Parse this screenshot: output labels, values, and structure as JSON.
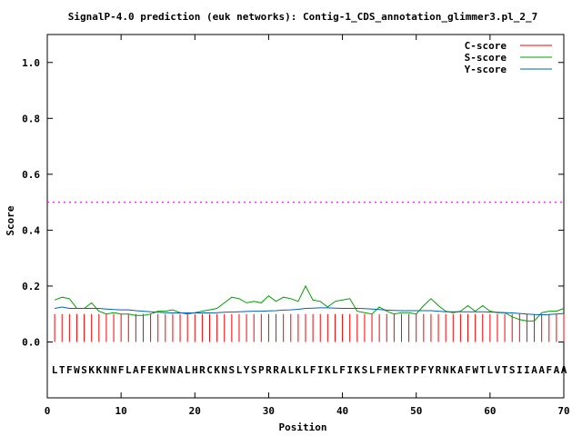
{
  "chart_data": {
    "type": "line",
    "title": "SignalP-4.0 prediction (euk networks): Contig-1_CDS_annotation_glimmer3.pl_2_7",
    "xlabel": "Position",
    "ylabel": "Score",
    "xlim": [
      0,
      70
    ],
    "ylim": [
      -0.2,
      1.1
    ],
    "xticks": [
      0,
      10,
      20,
      30,
      40,
      50,
      60,
      70
    ],
    "yticks": [
      0.0,
      0.2,
      0.4,
      0.6,
      0.8,
      1.0
    ],
    "xtick_labels": [
      "0",
      "10",
      "20",
      "30",
      "40",
      "50",
      "60",
      "70"
    ],
    "ytick_labels": [
      "0.0",
      "0.2",
      "0.4",
      "0.6",
      "0.8",
      "1.0"
    ],
    "threshold": 0.5,
    "threshold_color": "#ff00ff",
    "sequence": "LTFWSKKNNFLAFEKWNALHRCKNSLYSPRRALKLFIKLFIKSLFMEKTPFYRNKAFWTLVTSIIAAFAA",
    "legend_position": "top-right",
    "positions": [
      1,
      2,
      3,
      4,
      5,
      6,
      7,
      8,
      9,
      10,
      11,
      12,
      13,
      14,
      15,
      16,
      17,
      18,
      19,
      20,
      21,
      22,
      23,
      24,
      25,
      26,
      27,
      28,
      29,
      30,
      31,
      32,
      33,
      34,
      35,
      36,
      37,
      38,
      39,
      40,
      41,
      42,
      43,
      44,
      45,
      46,
      47,
      48,
      49,
      50,
      51,
      52,
      53,
      54,
      55,
      56,
      57,
      58,
      59,
      60,
      61,
      62,
      63,
      64,
      65,
      66,
      67,
      68,
      69,
      70
    ],
    "series": [
      {
        "name": "C-score",
        "color": "#ff0000",
        "style": "impulses",
        "values": [
          0.1,
          0.1,
          0.1,
          0.1,
          0.1,
          0.1,
          0.1,
          0.1,
          0.1,
          0.1,
          0.1,
          0.1,
          0.1,
          0.1,
          0.1,
          0.1,
          0.1,
          0.1,
          0.1,
          0.1,
          0.1,
          0.1,
          0.1,
          0.1,
          0.1,
          0.1,
          0.1,
          0.1,
          0.1,
          0.1,
          0.1,
          0.1,
          0.1,
          0.1,
          0.1,
          0.1,
          0.1,
          0.1,
          0.1,
          0.1,
          0.1,
          0.1,
          0.1,
          0.1,
          0.1,
          0.1,
          0.1,
          0.1,
          0.1,
          0.1,
          0.1,
          0.1,
          0.1,
          0.1,
          0.1,
          0.1,
          0.1,
          0.1,
          0.1,
          0.1,
          0.1,
          0.1,
          0.1,
          0.1,
          0.1,
          0.1,
          0.1,
          0.1,
          0.1,
          0.1
        ]
      },
      {
        "name": "S-score",
        "color": "#00a000",
        "style": "line",
        "values": [
          0.15,
          0.16,
          0.155,
          0.12,
          0.12,
          0.14,
          0.11,
          0.1,
          0.105,
          0.1,
          0.1,
          0.095,
          0.095,
          0.1,
          0.11,
          0.11,
          0.115,
          0.105,
          0.1,
          0.105,
          0.11,
          0.115,
          0.12,
          0.14,
          0.16,
          0.155,
          0.14,
          0.145,
          0.14,
          0.165,
          0.145,
          0.16,
          0.155,
          0.145,
          0.2,
          0.15,
          0.145,
          0.125,
          0.145,
          0.15,
          0.155,
          0.11,
          0.105,
          0.1,
          0.125,
          0.11,
          0.1,
          0.105,
          0.105,
          0.1,
          0.13,
          0.155,
          0.13,
          0.11,
          0.105,
          0.11,
          0.13,
          0.11,
          0.13,
          0.11,
          0.105,
          0.105,
          0.09,
          0.08,
          0.075,
          0.075,
          0.105,
          0.11,
          0.11,
          0.12
        ]
      },
      {
        "name": "Y-score",
        "color": "#0060c0",
        "style": "line",
        "values": [
          0.12,
          0.125,
          0.12,
          0.12,
          0.12,
          0.12,
          0.12,
          0.118,
          0.116,
          0.115,
          0.115,
          0.112,
          0.11,
          0.108,
          0.106,
          0.105,
          0.104,
          0.104,
          0.104,
          0.104,
          0.104,
          0.104,
          0.105,
          0.106,
          0.107,
          0.108,
          0.109,
          0.11,
          0.11,
          0.111,
          0.112,
          0.114,
          0.115,
          0.117,
          0.12,
          0.121,
          0.122,
          0.122,
          0.121,
          0.12,
          0.12,
          0.12,
          0.119,
          0.118,
          0.116,
          0.114,
          0.113,
          0.112,
          0.112,
          0.112,
          0.112,
          0.112,
          0.11,
          0.108,
          0.108,
          0.108,
          0.108,
          0.108,
          0.108,
          0.107,
          0.106,
          0.105,
          0.104,
          0.102,
          0.1,
          0.098,
          0.097,
          0.098,
          0.1,
          0.102
        ]
      }
    ]
  }
}
